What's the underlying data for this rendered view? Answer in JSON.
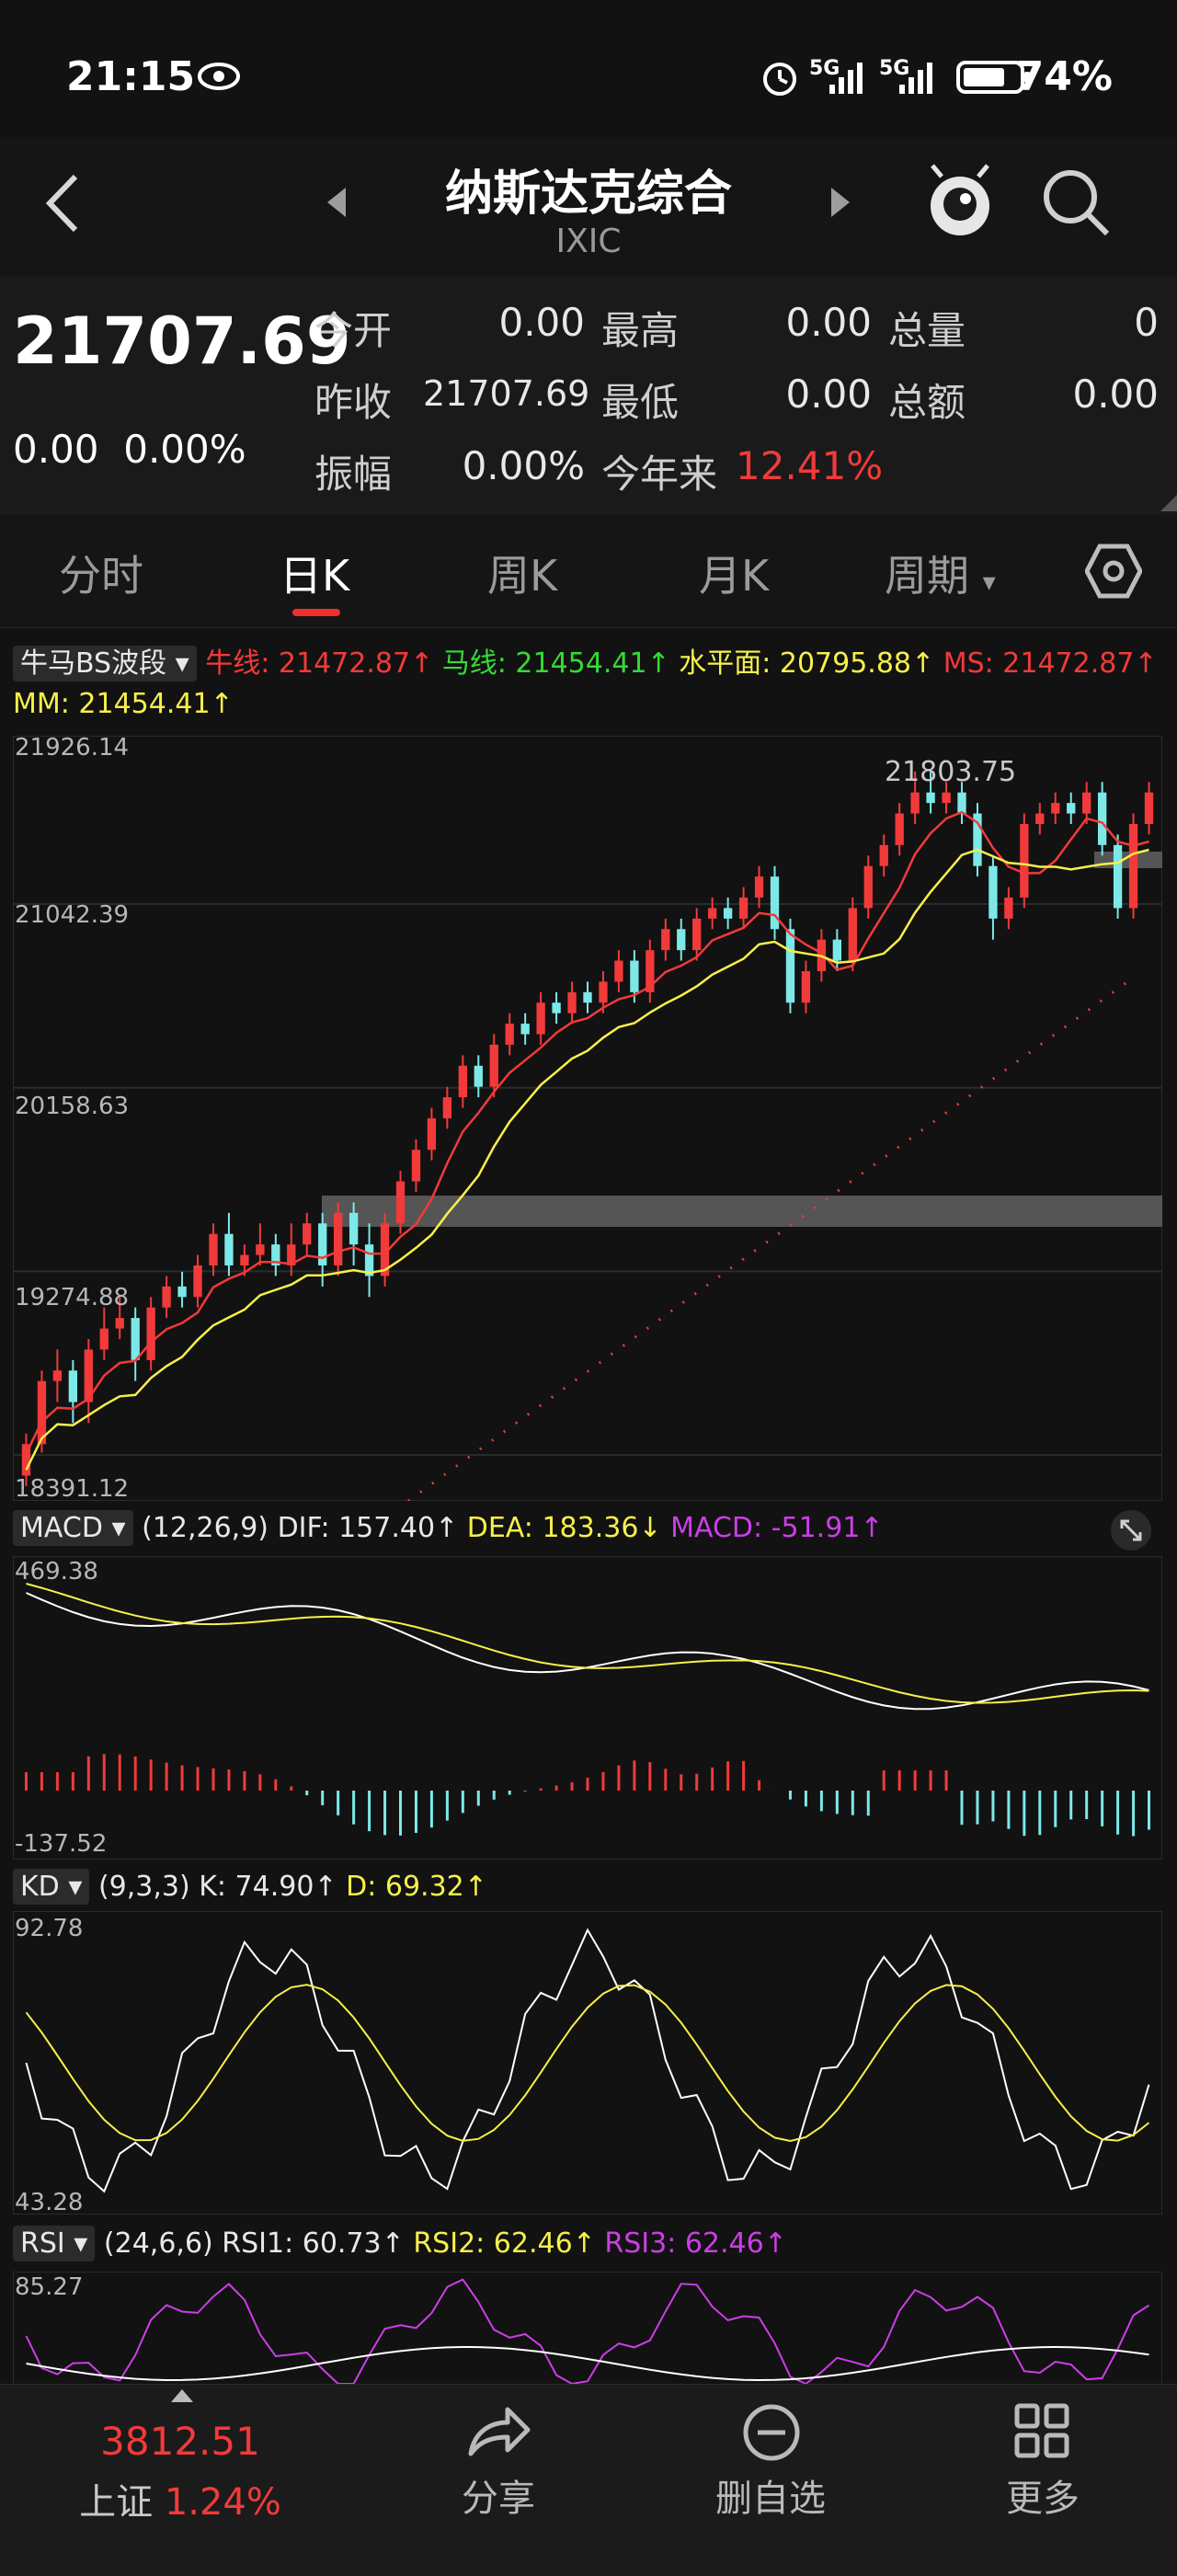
{
  "status_bar": {
    "time": "21:15",
    "battery": "74%",
    "signal1": "5G",
    "signal2": "5G"
  },
  "header": {
    "title": "纳斯达克综合",
    "code": "IXIC"
  },
  "quote": {
    "price": "21707.69",
    "change": "0.00",
    "change_pct": "0.00%",
    "fields": [
      {
        "label": "今开",
        "value": "0.00"
      },
      {
        "label": "最高",
        "value": "0.00"
      },
      {
        "label": "总量",
        "value": "0"
      },
      {
        "label": "昨收",
        "value": "21707.69"
      },
      {
        "label": "最低",
        "value": "0.00"
      },
      {
        "label": "总额",
        "value": "0.00"
      },
      {
        "label": "振幅",
        "value": "0.00%"
      },
      {
        "label": "今年来",
        "value": "12.41%"
      }
    ]
  },
  "tabs": [
    "分时",
    "日K",
    "周K",
    "月K",
    "周期"
  ],
  "main_indicator": {
    "name": "牛马BS波段",
    "items": [
      {
        "text": "牛线: 21472.87↑",
        "color": "#f23a3a"
      },
      {
        "text": "马线: 21454.41↑",
        "color": "#36d936"
      },
      {
        "text": "水平面: 20795.88↑",
        "color": "#f7f04a"
      },
      {
        "text": "MS: 21472.87↑",
        "color": "#f23a3a"
      }
    ],
    "line2": {
      "text": "MM: 21454.41↑",
      "color": "#f7f04a"
    }
  },
  "price_axis": [
    "21926.14",
    "21042.39",
    "20158.63",
    "19274.88",
    "18391.12"
  ],
  "price_peak_label": "21803.75",
  "macd": {
    "name": "MACD",
    "params": "(12,26,9)",
    "dif": "DIF: 157.40↑",
    "dea": "DEA: 183.36↓",
    "macd": "MACD: -51.91↑",
    "axis_top": "469.38",
    "axis_bottom": "-137.52"
  },
  "kd": {
    "name": "KD",
    "params": "(9,3,3)",
    "k": "K: 74.90↑",
    "d": "D: 69.32↑",
    "axis_top": "92.78",
    "axis_bottom": "43.28"
  },
  "rsi": {
    "name": "RSI",
    "params": "(24,6,6)",
    "rsi1": "RSI1: 60.73↑",
    "rsi2": "RSI2: 62.46↑",
    "rsi3": "RSI3: 62.46↑",
    "axis_top": "85.27"
  },
  "bottom_bar": {
    "index_value": "3812.51",
    "index_name": "上证",
    "index_pct": "1.24%",
    "share": "分享",
    "remove": "删自选",
    "more": "更多"
  },
  "colors": {
    "up": "#f23a3a",
    "down": "#7de8e8",
    "ma_red": "#f23a3a",
    "ma_yellow": "#f7f04a",
    "macd_purple": "#cc3ee6"
  },
  "chart_data": {
    "type": "candlestick",
    "price_range": [
      18391.12,
      21926.14
    ],
    "candles": [
      [
        18450,
        18600,
        18400,
        18650
      ],
      [
        18600,
        18900,
        18560,
        18950
      ],
      [
        18900,
        18950,
        18800,
        19050
      ],
      [
        18950,
        18800,
        18700,
        19000
      ],
      [
        18800,
        19050,
        18700,
        19100
      ],
      [
        19050,
        19150,
        19000,
        19250
      ],
      [
        19150,
        19200,
        19100,
        19300
      ],
      [
        19200,
        19000,
        18900,
        19250
      ],
      [
        19000,
        19250,
        18950,
        19300
      ],
      [
        19250,
        19350,
        19200,
        19400
      ],
      [
        19350,
        19300,
        19250,
        19420
      ],
      [
        19300,
        19450,
        19250,
        19500
      ],
      [
        19450,
        19600,
        19400,
        19650
      ],
      [
        19600,
        19450,
        19400,
        19700
      ],
      [
        19450,
        19500,
        19400,
        19550
      ],
      [
        19500,
        19550,
        19450,
        19650
      ],
      [
        19550,
        19450,
        19400,
        19600
      ],
      [
        19450,
        19550,
        19400,
        19650
      ],
      [
        19550,
        19650,
        19500,
        19700
      ],
      [
        19650,
        19450,
        19350,
        19700
      ],
      [
        19450,
        19700,
        19400,
        19750
      ],
      [
        19700,
        19550,
        19450,
        19750
      ],
      [
        19550,
        19400,
        19300,
        19650
      ],
      [
        19400,
        19650,
        19350,
        19700
      ],
      [
        19650,
        19850,
        19600,
        19900
      ],
      [
        19850,
        20000,
        19800,
        20050
      ],
      [
        20000,
        20150,
        19950,
        20200
      ],
      [
        20150,
        20250,
        20100,
        20300
      ],
      [
        20250,
        20400,
        20200,
        20450
      ],
      [
        20400,
        20300,
        20250,
        20450
      ],
      [
        20300,
        20500,
        20250,
        20550
      ],
      [
        20500,
        20600,
        20450,
        20650
      ],
      [
        20600,
        20550,
        20500,
        20650
      ],
      [
        20550,
        20700,
        20500,
        20750
      ],
      [
        20700,
        20650,
        20600,
        20750
      ],
      [
        20650,
        20750,
        20600,
        20800
      ],
      [
        20750,
        20700,
        20650,
        20800
      ],
      [
        20700,
        20800,
        20650,
        20850
      ],
      [
        20800,
        20900,
        20750,
        20950
      ],
      [
        20900,
        20750,
        20700,
        20950
      ],
      [
        20750,
        20950,
        20700,
        21000
      ],
      [
        20950,
        21050,
        20900,
        21100
      ],
      [
        21050,
        20950,
        20900,
        21100
      ],
      [
        20950,
        21100,
        20900,
        21150
      ],
      [
        21100,
        21150,
        21050,
        21200
      ],
      [
        21150,
        21100,
        21050,
        21200
      ],
      [
        21100,
        21200,
        21050,
        21250
      ],
      [
        21200,
        21300,
        21150,
        21350
      ],
      [
        21300,
        21050,
        21000,
        21350
      ],
      [
        21050,
        20700,
        20650,
        21100
      ],
      [
        20700,
        20850,
        20650,
        20900
      ],
      [
        20850,
        21000,
        20800,
        21050
      ],
      [
        21000,
        20900,
        20850,
        21050
      ],
      [
        20900,
        21150,
        20850,
        21200
      ],
      [
        21150,
        21350,
        21100,
        21400
      ],
      [
        21350,
        21450,
        21300,
        21500
      ],
      [
        21450,
        21600,
        21400,
        21650
      ],
      [
        21600,
        21700,
        21550,
        21800
      ],
      [
        21700,
        21650,
        21600,
        21803.75
      ],
      [
        21650,
        21700,
        21600,
        21750
      ],
      [
        21700,
        21600,
        21550,
        21750
      ],
      [
        21600,
        21350,
        21300,
        21650
      ],
      [
        21350,
        21100,
        21000,
        21400
      ],
      [
        21100,
        21200,
        21050,
        21250
      ],
      [
        21200,
        21550,
        21150,
        21600
      ],
      [
        21550,
        21600,
        21500,
        21650
      ],
      [
        21600,
        21650,
        21550,
        21700
      ],
      [
        21650,
        21600,
        21550,
        21700
      ],
      [
        21600,
        21700,
        21550,
        21750
      ],
      [
        21700,
        21450,
        21400,
        21750
      ],
      [
        21450,
        21150,
        21100,
        21500
      ],
      [
        21150,
        21550,
        21100,
        21600
      ],
      [
        21550,
        21700,
        21500,
        21750
      ]
    ]
  }
}
